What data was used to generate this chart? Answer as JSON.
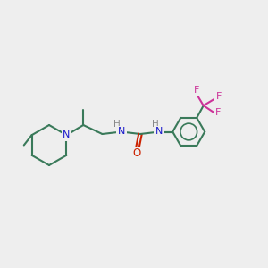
{
  "bg_color": "#eeeeee",
  "bond_color": "#3a7a5a",
  "nitrogen_color": "#1a1acc",
  "oxygen_color": "#cc2200",
  "fluorine_color": "#cc3399",
  "line_width": 1.5,
  "figsize": [
    3.0,
    3.0
  ],
  "dpi": 100,
  "xlim": [
    0,
    12
  ],
  "ylim": [
    0,
    12
  ]
}
